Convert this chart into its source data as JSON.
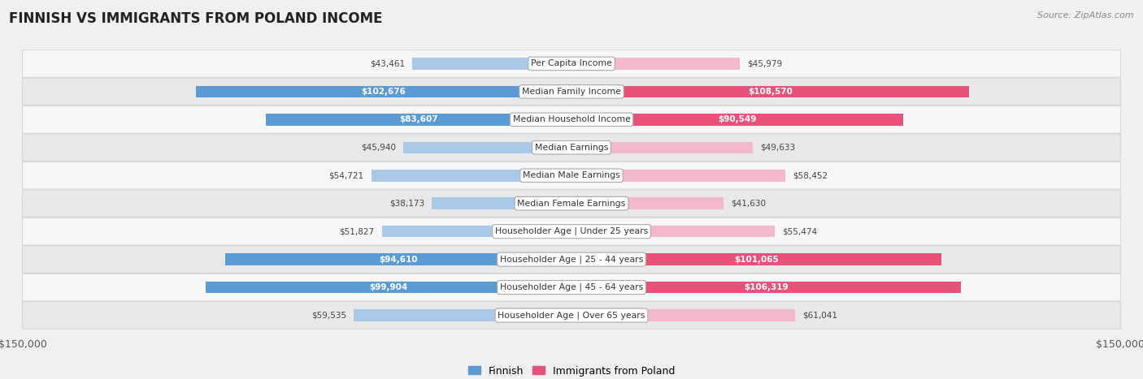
{
  "title": "FINNISH VS IMMIGRANTS FROM POLAND INCOME",
  "source": "Source: ZipAtlas.com",
  "categories": [
    "Per Capita Income",
    "Median Family Income",
    "Median Household Income",
    "Median Earnings",
    "Median Male Earnings",
    "Median Female Earnings",
    "Householder Age | Under 25 years",
    "Householder Age | 25 - 44 years",
    "Householder Age | 45 - 64 years",
    "Householder Age | Over 65 years"
  ],
  "finnish_values": [
    43461,
    102676,
    83607,
    45940,
    54721,
    38173,
    51827,
    94610,
    99904,
    59535
  ],
  "poland_values": [
    45979,
    108570,
    90549,
    49633,
    58452,
    41630,
    55474,
    101065,
    106319,
    61041
  ],
  "finnish_labels": [
    "$43,461",
    "$102,676",
    "$83,607",
    "$45,940",
    "$54,721",
    "$38,173",
    "$51,827",
    "$94,610",
    "$99,904",
    "$59,535"
  ],
  "poland_labels": [
    "$45,979",
    "$108,570",
    "$90,549",
    "$49,633",
    "$58,452",
    "$41,630",
    "$55,474",
    "$101,065",
    "$106,319",
    "$61,041"
  ],
  "max_value": 150000,
  "finnish_light_color": "#aac8e8",
  "finnish_dark_color": "#5b9bd5",
  "poland_light_color": "#f4b8ce",
  "poland_dark_color": "#e8527a",
  "bg_color": "#f0f0f0",
  "row_light_color": "#f7f7f7",
  "row_dark_color": "#e8e8e8",
  "legend_finnish": "Finnish",
  "legend_poland": "Immigrants from Poland",
  "inside_label_threshold": 0.45
}
